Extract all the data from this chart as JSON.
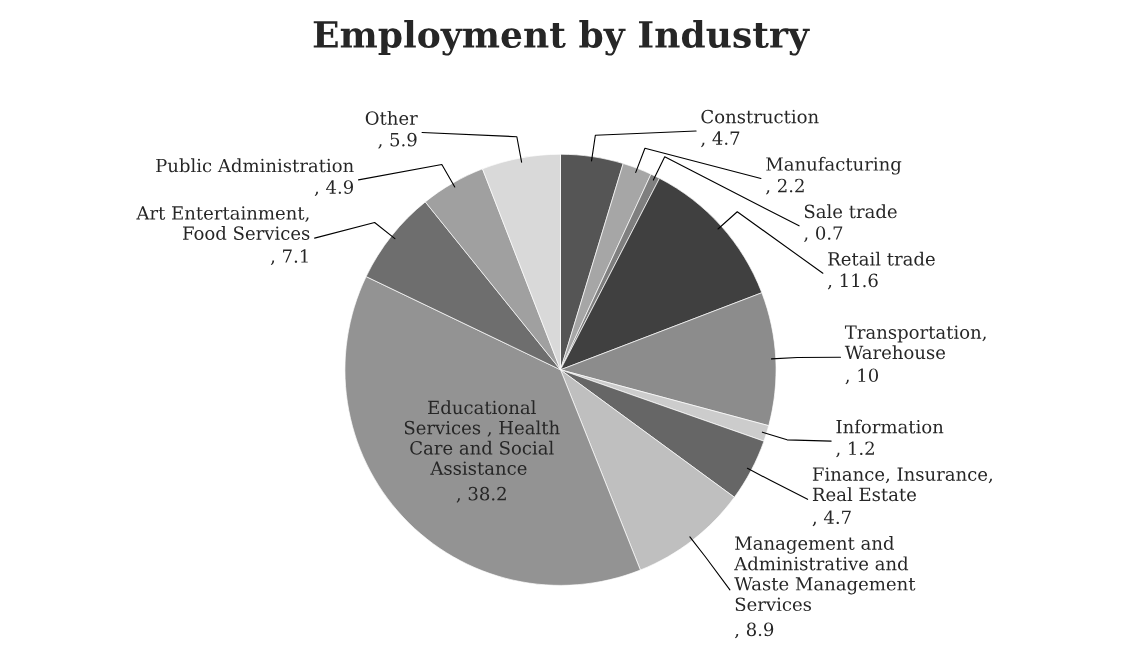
{
  "chart_data": {
    "type": "pie",
    "title": "Employment by Industry",
    "categories": [
      "Construction",
      "Manufacturing",
      "Sale trade",
      "Retail trade",
      "Transportation, Warehouse",
      "Information",
      "Finance, Insurance, Real Estate ",
      "Management and Administrative and Waste Management Services",
      "Educational Services , Health Care and Social Assistance ",
      "Art Entertainment, Food Services",
      "Public Administration",
      "Other"
    ],
    "values": [
      4.7,
      2.2,
      0.7,
      11.6,
      10,
      1.2,
      4.7,
      8.9,
      38.2,
      7.1,
      4.9,
      5.9
    ],
    "colors": [
      "#555555",
      "#a6a6a6",
      "#7f7f7f",
      "#404040",
      "#8c8c8c",
      "#cccccc",
      "#666666",
      "#bfbfbf",
      "#939393",
      "#6e6e6e",
      "#a0a0a0",
      "#d9d9d9"
    ],
    "value_labels": [
      ", 4.7",
      ", 2.2",
      ", 0.7",
      ", 11.6",
      ", 10",
      ", 1.2",
      ", 4.7",
      ", 8.9",
      ", 38.2",
      ", 7.1",
      ", 4.9",
      ", 5.9"
    ]
  }
}
